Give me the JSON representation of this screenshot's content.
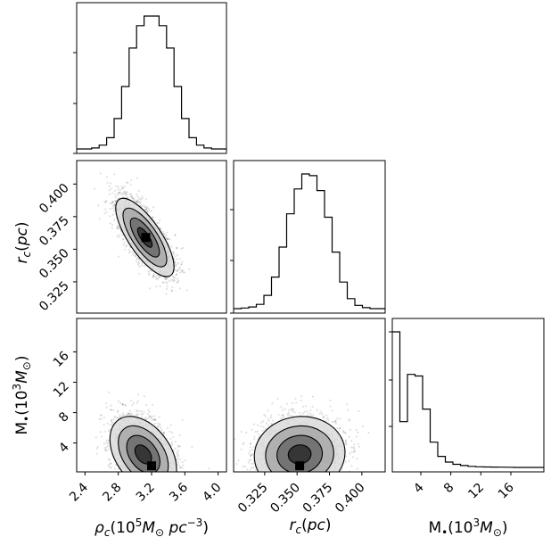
{
  "chart_data": {
    "type": "corner",
    "parameters": [
      {
        "key": "rho_c",
        "label": "ρc(10⁵M⊙ pc⁻³)",
        "range": [
          2.3,
          4.1
        ],
        "ticks": [
          2.4,
          2.8,
          3.2,
          3.6,
          4.0
        ],
        "tick_labels": [
          "2.4",
          "2.8",
          "3.2",
          "3.6",
          "4.0"
        ]
      },
      {
        "key": "r_c",
        "label": "rc(pc)",
        "range": [
          0.301,
          0.418
        ],
        "ticks": [
          0.325,
          0.35,
          0.375,
          0.4
        ],
        "tick_labels": [
          "0.325",
          "0.350",
          "0.375",
          "0.400"
        ]
      },
      {
        "key": "M_bh",
        "label": "M•(10³M⊙)",
        "range": [
          0.2,
          20.4
        ],
        "ticks": [
          4,
          8,
          12,
          16
        ],
        "tick_labels": [
          "4",
          "8",
          "12",
          "16"
        ]
      }
    ],
    "histograms": [
      {
        "param": "rho_c",
        "bin_edges": [
          2.3,
          2.39,
          2.48,
          2.57,
          2.66,
          2.75,
          2.84,
          2.93,
          3.02,
          3.11,
          3.2,
          3.29,
          3.38,
          3.47,
          3.56,
          3.65,
          3.74,
          3.83,
          3.92,
          4.01,
          4.1
        ],
        "counts": [
          0,
          0,
          0.3,
          1.2,
          3.5,
          9.5,
          19.5,
          31.5,
          38.5,
          41.5,
          41.5,
          38.5,
          31.5,
          19.5,
          9.5,
          3.5,
          1.2,
          0.3,
          0,
          0
        ]
      },
      {
        "param": "r_c",
        "bin_edges": [
          0.301,
          0.30685,
          0.3127,
          0.31855,
          0.3244,
          0.33025,
          0.3361,
          0.34195,
          0.3478,
          0.35365,
          0.3595,
          0.36535,
          0.3712,
          0.37705,
          0.3829,
          0.38875,
          0.3946,
          0.40045,
          0.4063,
          0.41215,
          0.418
        ],
        "counts": [
          0,
          0.2,
          0.5,
          1.3,
          4,
          9.5,
          18.5,
          28.5,
          36,
          40.5,
          40,
          35.5,
          27.5,
          17,
          8,
          3,
          1,
          0.3,
          0,
          0
        ]
      },
      {
        "param": "M_bh",
        "bin_edges": [
          0.2,
          1.21,
          2.22,
          3.23,
          4.24,
          5.25,
          6.26,
          7.27,
          8.28,
          9.29,
          10.3,
          11.31,
          12.32,
          13.33,
          14.34,
          15.35,
          16.36,
          17.37,
          18.38,
          19.39,
          20.4
        ],
        "counts": [
          43,
          14.5,
          29.5,
          29,
          18.5,
          8,
          3.5,
          1.7,
          1,
          0.6,
          0.35,
          0.2,
          0.15,
          0.1,
          0.08,
          0.05,
          0,
          0,
          0,
          0
        ]
      }
    ],
    "joint_distributions": [
      {
        "x": "rho_c",
        "y": "r_c",
        "mean": [
          3.12,
          0.359
        ],
        "sd": [
          0.14,
          0.012
        ],
        "correlation": -0.75,
        "contour_levels_sigma": [
          0.5,
          1.0,
          1.5,
          2.0
        ],
        "peak": [
          3.13,
          0.359
        ]
      },
      {
        "x": "rho_c",
        "y": "M_bh",
        "mean": [
          3.1,
          2.5
        ],
        "sd": [
          0.16,
          2.0
        ],
        "correlation": -0.4,
        "contour_levels_sigma": [
          0.5,
          1.0,
          1.5,
          2.0
        ],
        "peak": [
          3.2,
          1.0
        ]
      },
      {
        "x": "r_c",
        "y": "M_bh",
        "mean": [
          0.352,
          2.5
        ],
        "sd": [
          0.014,
          2.0
        ],
        "correlation": 0.05,
        "contour_levels_sigma": [
          0.5,
          1.0,
          1.5,
          2.0
        ],
        "peak": [
          0.352,
          1.0
        ]
      }
    ],
    "grid": false,
    "title": ""
  }
}
